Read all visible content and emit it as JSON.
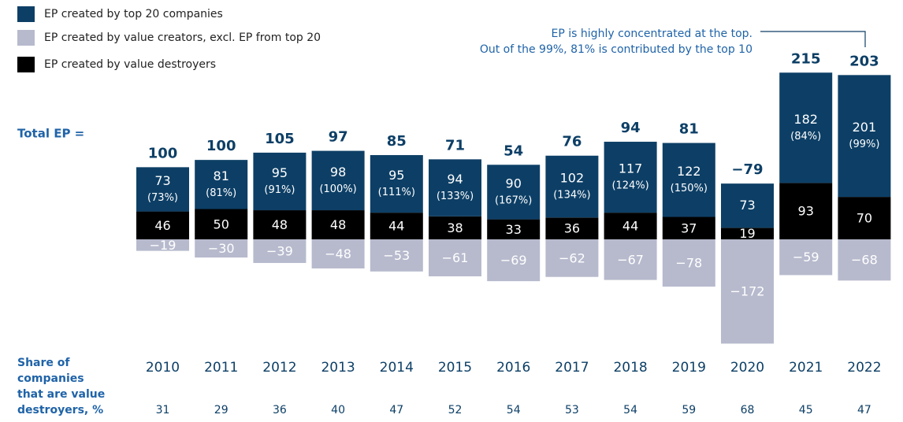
{
  "chart_data": {
    "type": "bar",
    "categories": [
      "2010",
      "2011",
      "2012",
      "2013",
      "2014",
      "2015",
      "2016",
      "2017",
      "2018",
      "2019",
      "2020",
      "2021",
      "2022"
    ],
    "series": [
      {
        "name": "EP created by top 20 companies",
        "color": "#0d3f66",
        "values": [
          73,
          81,
          95,
          98,
          95,
          94,
          90,
          102,
          117,
          122,
          73,
          182,
          201
        ],
        "shares": [
          73,
          81,
          91,
          100,
          111,
          133,
          167,
          134,
          124,
          150,
          null,
          84,
          99
        ],
        "share_labels": [
          "(73%)",
          "(81%)",
          "(91%)",
          "(100%)",
          "(111%)",
          "(133%)",
          "(167%)",
          "(134%)",
          "(124%)",
          "(150%)",
          null,
          "(84%)",
          "(99%)"
        ]
      },
      {
        "name": "EP created by value creators, excl. EP from top 20",
        "color": "#b7bacd",
        "values": [
          -19,
          -30,
          -39,
          -48,
          -53,
          -61,
          -69,
          -62,
          -67,
          -78,
          -172,
          -59,
          -68
        ],
        "value_labels": [
          "−19",
          "−30",
          "−39",
          "−48",
          "−53",
          "−61",
          "−69",
          "−62",
          "−67",
          "−78",
          "−172",
          "−59",
          "−68"
        ]
      },
      {
        "name": "EP created by value destroyers",
        "color": "#000000",
        "values": [
          46,
          50,
          48,
          48,
          44,
          38,
          33,
          36,
          44,
          37,
          19,
          93,
          70
        ]
      }
    ],
    "totals_label": "Total EP =",
    "totals": [
      100,
      100,
      105,
      97,
      85,
      71,
      54,
      76,
      94,
      81,
      -79,
      215,
      203
    ],
    "totals_value_labels": [
      "100",
      "100",
      "105",
      "97",
      "85",
      "71",
      "54",
      "76",
      "94",
      "81",
      "−79",
      "215",
      "203"
    ],
    "destroyer_share_label": [
      "Share of",
      "companies",
      "that are value",
      "destroyers, %"
    ],
    "destroyer_shares": [
      31,
      29,
      36,
      40,
      47,
      52,
      54,
      53,
      54,
      59,
      68,
      45,
      47
    ],
    "annotation": [
      "EP is highly concentrated at the top.",
      "Out of the 99%, 81% is contributed by the top 10"
    ],
    "ylim": [
      -180,
      280
    ]
  }
}
